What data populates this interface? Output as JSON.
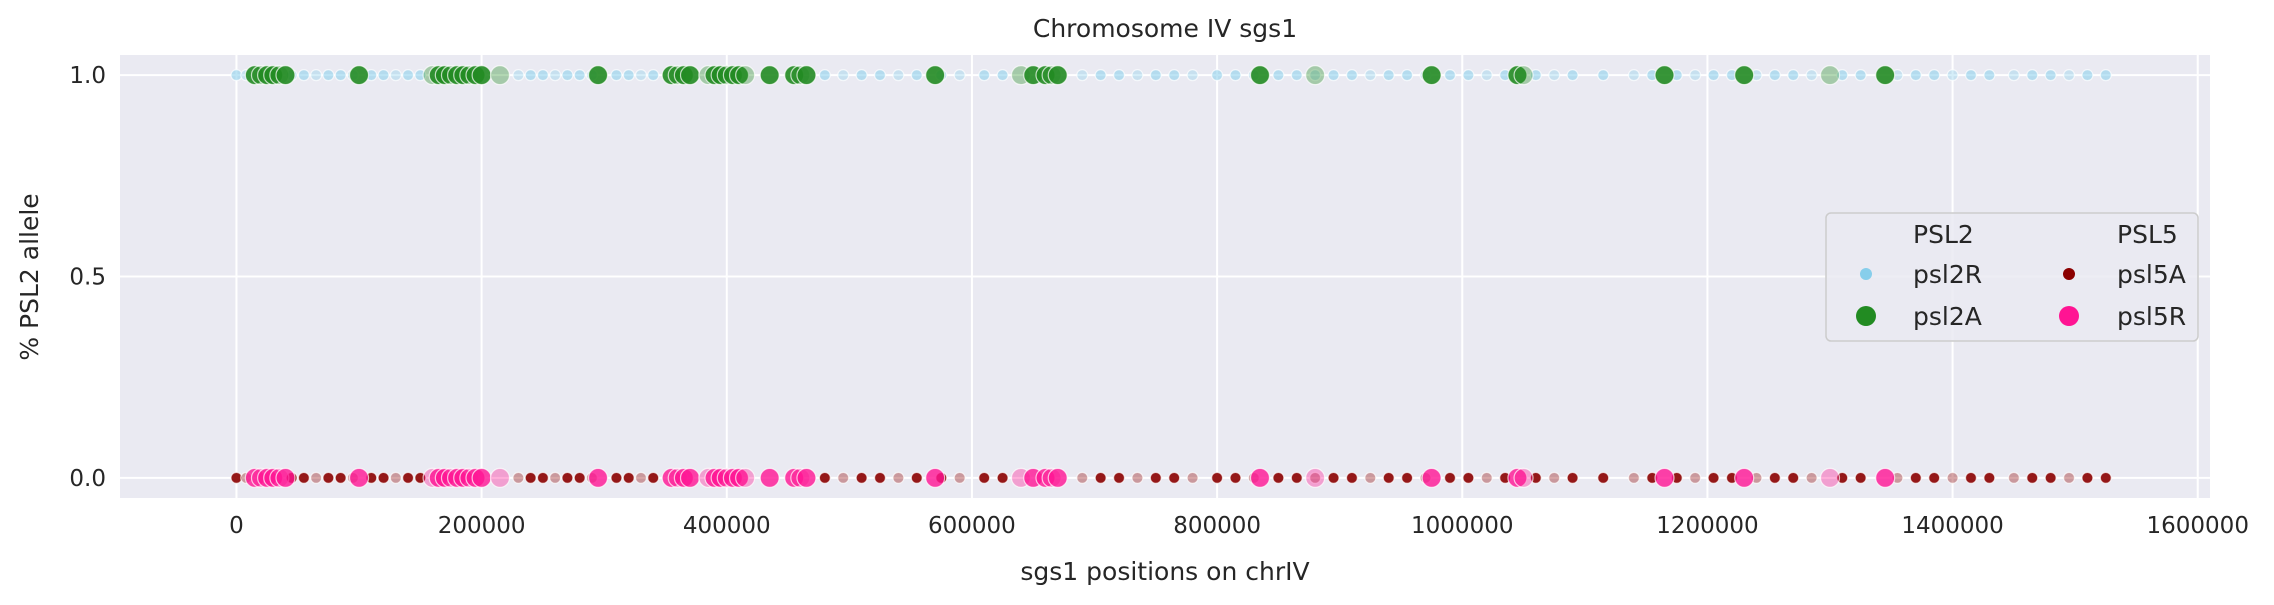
{
  "chart_data": {
    "type": "scatter",
    "title": "Chromosome IV sgs1",
    "xlabel": "sgs1 positions on chrIV",
    "ylabel": "% PSL2 allele",
    "xlim": [
      -95000,
      1610000
    ],
    "ylim": [
      -0.05,
      1.05
    ],
    "x_ticks": [
      0,
      200000,
      400000,
      600000,
      800000,
      1000000,
      1200000,
      1400000,
      1600000
    ],
    "x_tick_labels": [
      "0",
      "200000",
      "400000",
      "600000",
      "800000",
      "1000000",
      "1200000",
      "1400000",
      "1600000"
    ],
    "y_ticks": [
      0.0,
      0.5,
      1.0
    ],
    "y_tick_labels": [
      "0.0",
      "0.5",
      "1.0"
    ],
    "grid": true,
    "legend_placement": "center-right",
    "legend_columns": [
      {
        "title": "PSL2",
        "entries": [
          {
            "name": "psl2R",
            "color": "#87ceeb",
            "marker": "small-circle"
          },
          {
            "name": "psl2A",
            "color": "#228b22",
            "marker": "large-circle"
          }
        ]
      },
      {
        "title": "PSL5",
        "entries": [
          {
            "name": "psl5A",
            "color": "#8b0000",
            "marker": "small-circle"
          },
          {
            "name": "psl5R",
            "color": "#ff1493",
            "marker": "large-circle"
          }
        ]
      }
    ],
    "series": [
      {
        "name": "psl2R",
        "y": 1.0,
        "color": "#87ceeb",
        "x": [
          0,
          8000,
          45000,
          55000,
          65000,
          75000,
          85000,
          95000,
          110000,
          120000,
          130000,
          140000,
          150000,
          230000,
          240000,
          250000,
          260000,
          270000,
          280000,
          290000,
          310000,
          320000,
          330000,
          340000,
          480000,
          495000,
          510000,
          525000,
          540000,
          555000,
          575000,
          590000,
          610000,
          625000,
          690000,
          705000,
          720000,
          735000,
          750000,
          765000,
          780000,
          800000,
          815000,
          830000,
          850000,
          865000,
          880000,
          895000,
          910000,
          925000,
          940000,
          955000,
          970000,
          990000,
          1005000,
          1020000,
          1035000,
          1060000,
          1075000,
          1090000,
          1115000,
          1140000,
          1155000,
          1175000,
          1190000,
          1205000,
          1220000,
          1240000,
          1255000,
          1270000,
          1285000,
          1310000,
          1325000,
          1355000,
          1370000,
          1385000,
          1400000,
          1415000,
          1430000,
          1450000,
          1465000,
          1480000,
          1495000,
          1510000,
          1525000
        ]
      },
      {
        "name": "psl2A",
        "y": 1.0,
        "color": "#228b22",
        "x": [
          15000,
          20000,
          25000,
          30000,
          35000,
          40000,
          100000,
          160000,
          165000,
          170000,
          175000,
          180000,
          185000,
          190000,
          195000,
          200000,
          215000,
          295000,
          355000,
          360000,
          365000,
          370000,
          385000,
          390000,
          395000,
          400000,
          405000,
          410000,
          415000,
          435000,
          455000,
          460000,
          465000,
          570000,
          640000,
          650000,
          660000,
          665000,
          670000,
          835000,
          880000,
          975000,
          1045000,
          1050000,
          1165000,
          1230000,
          1300000,
          1345000
        ]
      },
      {
        "name": "psl5A",
        "y": 0.0,
        "color": "#8b0000",
        "x": [
          0,
          8000,
          45000,
          55000,
          65000,
          75000,
          85000,
          95000,
          110000,
          120000,
          130000,
          140000,
          150000,
          230000,
          240000,
          250000,
          260000,
          270000,
          280000,
          290000,
          310000,
          320000,
          330000,
          340000,
          480000,
          495000,
          510000,
          525000,
          540000,
          555000,
          575000,
          590000,
          610000,
          625000,
          690000,
          705000,
          720000,
          735000,
          750000,
          765000,
          780000,
          800000,
          815000,
          830000,
          850000,
          865000,
          880000,
          895000,
          910000,
          925000,
          940000,
          955000,
          970000,
          990000,
          1005000,
          1020000,
          1035000,
          1060000,
          1075000,
          1090000,
          1115000,
          1140000,
          1155000,
          1175000,
          1190000,
          1205000,
          1220000,
          1240000,
          1255000,
          1270000,
          1285000,
          1310000,
          1325000,
          1355000,
          1370000,
          1385000,
          1400000,
          1415000,
          1430000,
          1450000,
          1465000,
          1480000,
          1495000,
          1510000,
          1525000
        ]
      },
      {
        "name": "psl5R",
        "y": 0.0,
        "color": "#ff1493",
        "x": [
          15000,
          20000,
          25000,
          30000,
          35000,
          40000,
          100000,
          160000,
          165000,
          170000,
          175000,
          180000,
          185000,
          190000,
          195000,
          200000,
          215000,
          295000,
          355000,
          360000,
          365000,
          370000,
          385000,
          390000,
          395000,
          400000,
          405000,
          410000,
          415000,
          435000,
          455000,
          460000,
          465000,
          570000,
          640000,
          650000,
          660000,
          665000,
          670000,
          835000,
          880000,
          975000,
          1045000,
          1050000,
          1165000,
          1230000,
          1300000,
          1345000
        ]
      }
    ]
  }
}
